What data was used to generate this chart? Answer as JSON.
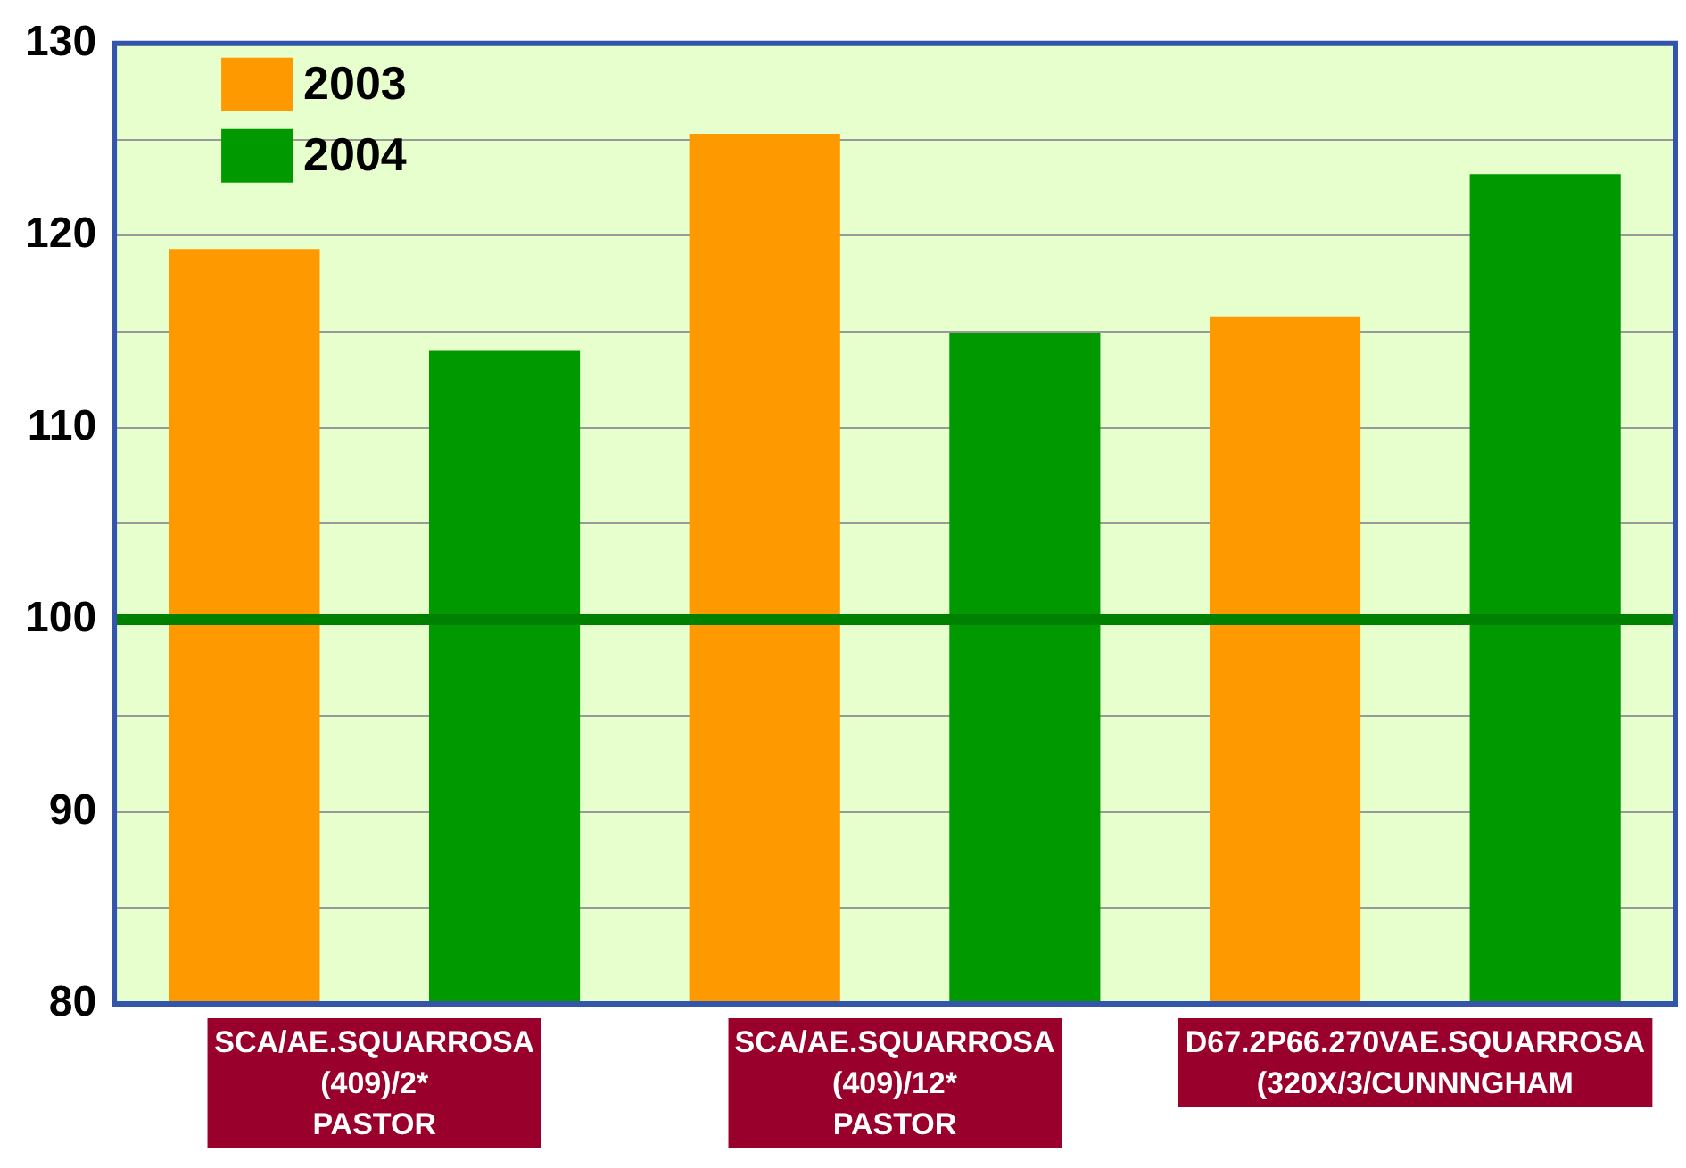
{
  "chart_data": {
    "type": "bar",
    "categories": [
      "SCA/AE.SQUARROSA\n(409)/2*\nPASTOR",
      "SCA/AE.SQUARROSA\n(409)/12*\nPASTOR",
      "D67.2P66.270VAE.SQUARROSA\n(320X/3/CUNNNGHAM"
    ],
    "series": [
      {
        "name": "2003",
        "color": "#ff9900",
        "values": [
          119.3,
          125.3,
          115.8
        ]
      },
      {
        "name": "2004",
        "color": "#009900",
        "values": [
          114.0,
          114.9,
          123.2
        ]
      }
    ],
    "ylim": [
      80,
      130
    ],
    "yticks": [
      80,
      {
        "value": 85,
        "label": null
      },
      90,
      {
        "value": 95,
        "label": null
      },
      100,
      {
        "value": 105,
        "label": null
      },
      110,
      {
        "value": 115,
        "label": null
      },
      120,
      {
        "value": 125,
        "label": null
      },
      130
    ],
    "ref_lines": [
      {
        "axis": "y",
        "value": 100,
        "color": "#008000"
      }
    ],
    "grid": "y",
    "legend": "top left"
  }
}
